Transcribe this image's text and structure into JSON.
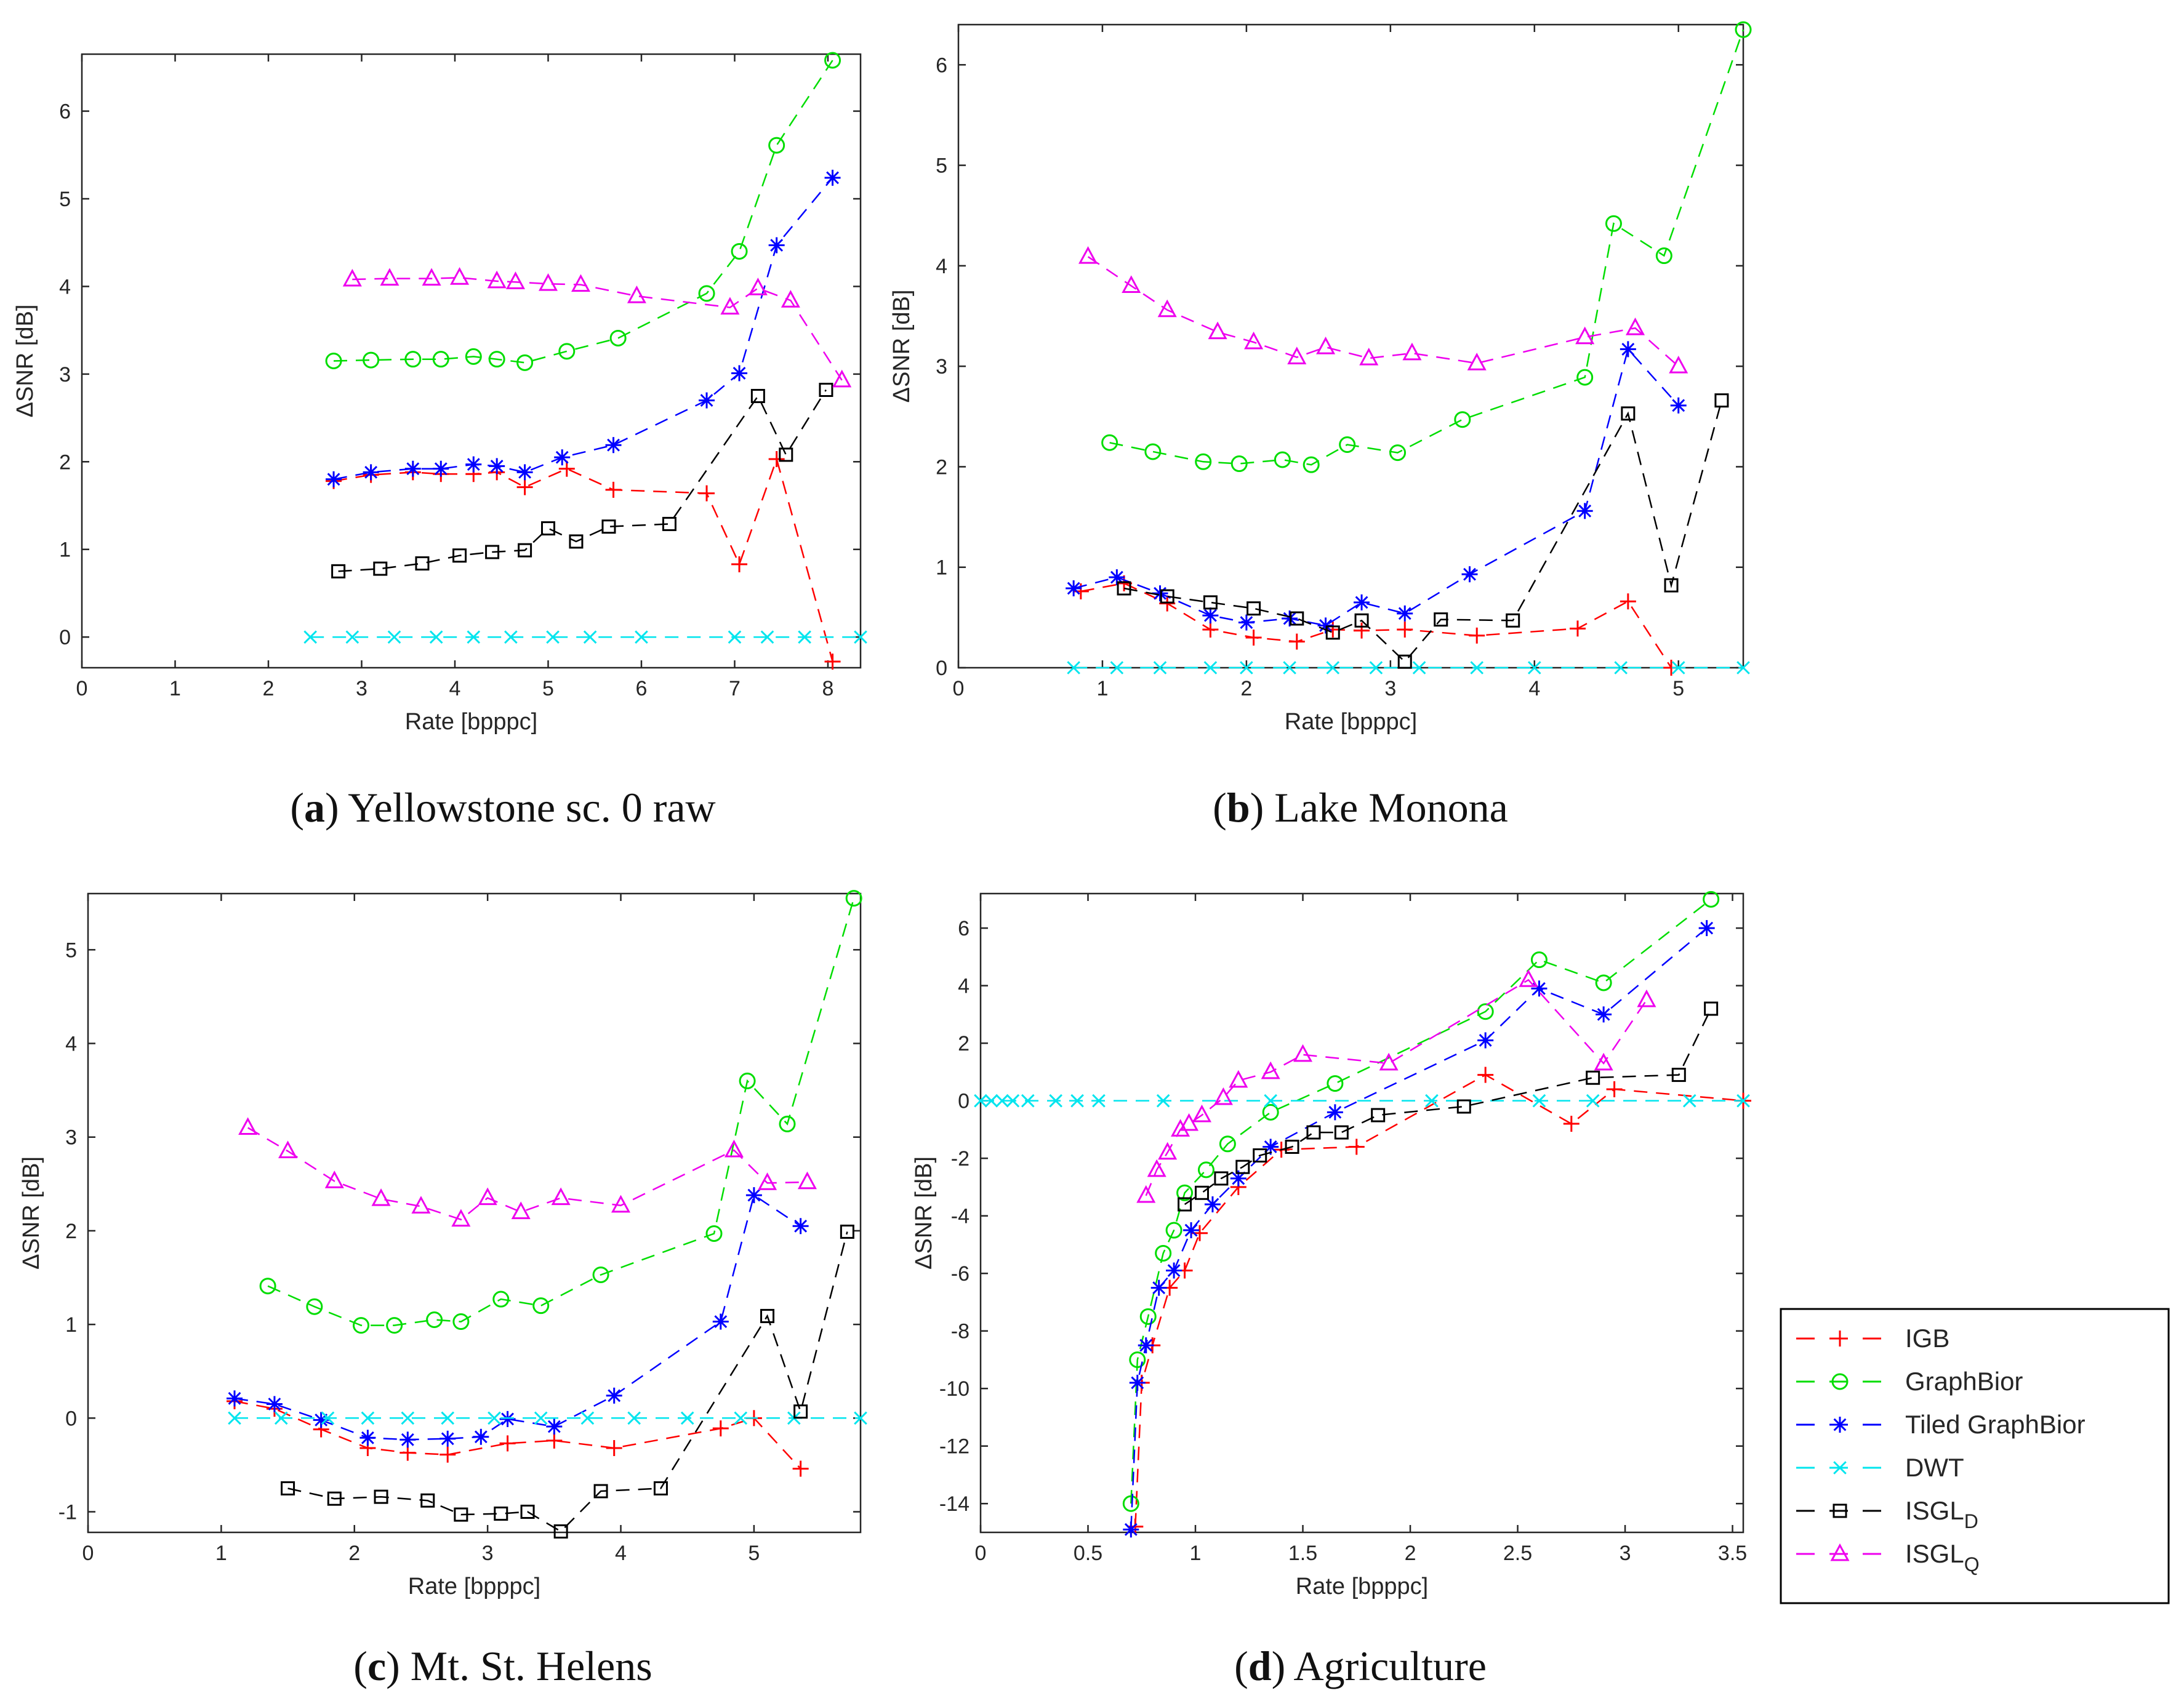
{
  "legend": {
    "entries": [
      {
        "name": "IGB",
        "sub": "",
        "color": "#ff0000",
        "marker": "plus"
      },
      {
        "name": "GraphBior",
        "sub": "",
        "color": "#00dd00",
        "marker": "circle"
      },
      {
        "name": "Tiled GraphBior",
        "sub": "",
        "color": "#0000ff",
        "marker": "star"
      },
      {
        "name": "DWT",
        "sub": "",
        "color": "#00e5ee",
        "marker": "cross"
      },
      {
        "name": "ISGL",
        "sub": "D",
        "color": "#000000",
        "marker": "square"
      },
      {
        "name": "ISGL",
        "sub": "Q",
        "color": "#ee00ee",
        "marker": "triangle"
      }
    ]
  },
  "chart_data": [
    {
      "type": "line",
      "caption_letter": "a",
      "caption_text": " Yellowstone sc. 0 raw",
      "xlabel": "Rate [bpppc]",
      "ylabel": "ΔSNR [dB]",
      "xlim": [
        0,
        8.35
      ],
      "ylim": [
        -0.35,
        6.65
      ],
      "xticks": [
        0,
        1,
        2,
        3,
        4,
        5,
        6,
        7,
        8
      ],
      "yticks": [
        0,
        1,
        2,
        3,
        4,
        5,
        6
      ],
      "series": [
        {
          "name": "IGB",
          "x": [
            2.7,
            3.1,
            3.55,
            3.85,
            4.2,
            4.45,
            4.75,
            5.2,
            5.7,
            6.7,
            7.05,
            7.45,
            8.05
          ],
          "y": [
            1.78,
            1.85,
            1.88,
            1.86,
            1.86,
            1.88,
            1.71,
            1.92,
            1.68,
            1.64,
            0.83,
            2.03,
            -0.28
          ]
        },
        {
          "name": "GraphBior",
          "x": [
            2.7,
            3.1,
            3.55,
            3.85,
            4.2,
            4.45,
            4.75,
            5.2,
            5.75,
            6.7,
            7.05,
            7.45,
            8.05
          ],
          "y": [
            3.15,
            3.16,
            3.17,
            3.17,
            3.2,
            3.17,
            3.13,
            3.26,
            3.41,
            3.92,
            4.4,
            5.61,
            6.58
          ]
        },
        {
          "name": "Tiled GraphBior",
          "x": [
            2.7,
            3.1,
            3.55,
            3.85,
            4.2,
            4.45,
            4.75,
            5.15,
            5.7,
            6.7,
            7.05,
            7.45,
            8.05
          ],
          "y": [
            1.8,
            1.88,
            1.92,
            1.92,
            1.97,
            1.95,
            1.88,
            2.05,
            2.19,
            2.7,
            3.01,
            4.47,
            5.24
          ]
        },
        {
          "name": "DWT",
          "x": [
            2.45,
            2.9,
            3.35,
            3.8,
            4.2,
            4.6,
            5.05,
            5.45,
            6.0,
            7.0,
            7.35,
            7.75,
            8.35
          ],
          "y": [
            0,
            0,
            0,
            0,
            0,
            0,
            0,
            0,
            0,
            0,
            0,
            0,
            0
          ]
        },
        {
          "name": "ISGL_D",
          "x": [
            2.75,
            3.2,
            3.65,
            4.05,
            4.4,
            4.75,
            5.0,
            5.3,
            5.65,
            6.3,
            7.25,
            7.55,
            7.98
          ],
          "y": [
            0.75,
            0.78,
            0.84,
            0.93,
            0.97,
            0.99,
            1.24,
            1.09,
            1.26,
            1.29,
            2.75,
            2.08,
            2.82
          ]
        },
        {
          "name": "ISGL_Q",
          "x": [
            2.9,
            3.3,
            3.75,
            4.05,
            4.45,
            4.65,
            5.0,
            5.35,
            5.95,
            6.95,
            7.25,
            7.6,
            8.15
          ],
          "y": [
            4.08,
            4.09,
            4.09,
            4.1,
            4.06,
            4.05,
            4.03,
            4.02,
            3.89,
            3.76,
            3.98,
            3.84,
            2.93
          ]
        }
      ]
    },
    {
      "type": "line",
      "caption_letter": "b",
      "caption_text": " Lake Monona",
      "xlabel": "Rate [bpppc]",
      "ylabel": "ΔSNR [dB]",
      "xlim": [
        0,
        5.45
      ],
      "ylim": [
        0,
        6.4
      ],
      "xticks": [
        0,
        1,
        2,
        3,
        4,
        5
      ],
      "yticks": [
        0,
        1,
        2,
        3,
        4,
        5,
        6
      ],
      "series": [
        {
          "name": "IGB",
          "x": [
            0.85,
            1.15,
            1.45,
            1.75,
            2.05,
            2.35,
            2.6,
            2.8,
            3.1,
            3.6,
            4.3,
            4.65,
            4.95
          ],
          "y": [
            0.76,
            0.84,
            0.64,
            0.38,
            0.3,
            0.26,
            0.38,
            0.37,
            0.38,
            0.32,
            0.39,
            0.66,
            0.0
          ]
        },
        {
          "name": "GraphBior",
          "x": [
            1.05,
            1.35,
            1.7,
            1.95,
            2.25,
            2.45,
            2.7,
            3.05,
            3.5,
            4.35,
            4.55,
            4.9,
            5.45
          ],
          "y": [
            2.24,
            2.15,
            2.05,
            2.03,
            2.07,
            2.02,
            2.22,
            2.14,
            2.47,
            2.89,
            4.42,
            4.1,
            6.35
          ]
        },
        {
          "name": "Tiled GraphBior",
          "x": [
            0.8,
            1.1,
            1.4,
            1.75,
            2.0,
            2.3,
            2.55,
            2.8,
            3.1,
            3.55,
            4.35,
            4.65,
            5.0
          ],
          "y": [
            0.79,
            0.9,
            0.74,
            0.52,
            0.45,
            0.49,
            0.42,
            0.65,
            0.54,
            0.93,
            1.56,
            3.17,
            2.61
          ]
        },
        {
          "name": "DWT",
          "x": [
            0.8,
            1.1,
            1.4,
            1.75,
            2.0,
            2.3,
            2.6,
            2.9,
            3.2,
            3.6,
            4.0,
            4.6,
            5.0,
            5.45
          ],
          "y": [
            0,
            0,
            0,
            0,
            0,
            0,
            0,
            0,
            0,
            0,
            0,
            0,
            0,
            0
          ]
        },
        {
          "name": "ISGL_D",
          "x": [
            1.15,
            1.45,
            1.75,
            2.05,
            2.35,
            2.6,
            2.8,
            3.1,
            3.35,
            3.85,
            4.65,
            4.95,
            5.3
          ],
          "y": [
            0.79,
            0.71,
            0.65,
            0.59,
            0.49,
            0.35,
            0.47,
            0.06,
            0.48,
            0.47,
            2.53,
            0.82,
            2.66
          ]
        },
        {
          "name": "ISGL_Q",
          "x": [
            0.9,
            1.2,
            1.45,
            1.8,
            2.05,
            2.35,
            2.55,
            2.85,
            3.15,
            3.6,
            4.35,
            4.7,
            5.0
          ],
          "y": [
            4.09,
            3.8,
            3.56,
            3.34,
            3.24,
            3.09,
            3.19,
            3.08,
            3.13,
            3.03,
            3.29,
            3.38,
            3.0
          ]
        }
      ]
    },
    {
      "type": "line",
      "caption_letter": "c",
      "caption_text": " Mt. St. Helens",
      "xlabel": "Rate [bpppc]",
      "ylabel": "ΔSNR [dB]",
      "xlim": [
        0,
        5.8
      ],
      "ylim": [
        -1.22,
        5.6
      ],
      "xticks": [
        0,
        1,
        2,
        3,
        4,
        5
      ],
      "yticks": [
        -1,
        0,
        1,
        2,
        3,
        4,
        5
      ],
      "series": [
        {
          "name": "IGB",
          "x": [
            1.1,
            1.4,
            1.75,
            2.1,
            2.4,
            2.7,
            3.15,
            3.5,
            3.95,
            4.75,
            5.0,
            5.35
          ],
          "y": [
            0.18,
            0.1,
            -0.12,
            -0.32,
            -0.37,
            -0.39,
            -0.27,
            -0.24,
            -0.32,
            -0.11,
            0.0,
            -0.54
          ]
        },
        {
          "name": "GraphBior",
          "x": [
            1.35,
            1.7,
            2.05,
            2.3,
            2.6,
            2.8,
            3.1,
            3.4,
            3.85,
            4.7,
            4.95,
            5.25,
            5.75
          ],
          "y": [
            1.41,
            1.19,
            0.99,
            0.99,
            1.05,
            1.03,
            1.27,
            1.2,
            1.53,
            1.97,
            3.6,
            3.14,
            5.55
          ]
        },
        {
          "name": "Tiled GraphBior",
          "x": [
            1.1,
            1.4,
            1.75,
            2.1,
            2.4,
            2.7,
            2.95,
            3.15,
            3.5,
            3.95,
            4.75,
            5.0,
            5.35
          ],
          "y": [
            0.21,
            0.15,
            -0.02,
            -0.21,
            -0.23,
            -0.22,
            -0.2,
            -0.01,
            -0.09,
            0.24,
            1.03,
            2.38,
            2.05
          ]
        },
        {
          "name": "DWT",
          "x": [
            1.1,
            1.45,
            1.8,
            2.1,
            2.4,
            2.7,
            3.05,
            3.4,
            3.75,
            4.1,
            4.5,
            4.9,
            5.3,
            5.8
          ],
          "y": [
            0,
            0,
            0,
            0,
            0,
            0,
            0,
            0,
            0,
            0,
            0,
            0,
            0,
            0
          ]
        },
        {
          "name": "ISGL_D",
          "x": [
            1.5,
            1.85,
            2.2,
            2.55,
            2.8,
            3.1,
            3.3,
            3.55,
            3.85,
            4.3,
            5.1,
            5.35,
            5.7
          ],
          "y": [
            -0.75,
            -0.86,
            -0.84,
            -0.88,
            -1.03,
            -1.02,
            -1.0,
            -1.21,
            -0.78,
            -0.75,
            1.09,
            0.07,
            1.99
          ]
        },
        {
          "name": "ISGL_Q",
          "x": [
            1.2,
            1.5,
            1.85,
            2.2,
            2.5,
            2.8,
            3.0,
            3.25,
            3.55,
            4.0,
            4.85,
            5.1,
            5.4
          ],
          "y": [
            3.1,
            2.85,
            2.53,
            2.34,
            2.26,
            2.12,
            2.35,
            2.2,
            2.35,
            2.27,
            2.86,
            2.51,
            2.52
          ]
        }
      ]
    },
    {
      "type": "line",
      "caption_letter": "d",
      "caption_text": " Agriculture",
      "xlabel": "Rate [bpppc]",
      "ylabel": "ΔSNR [dB]",
      "xlim": [
        0,
        3.55
      ],
      "ylim": [
        -15,
        7.2
      ],
      "xticks": [
        0,
        0.5,
        1,
        1.5,
        2,
        2.5,
        3,
        3.5
      ],
      "yticks": [
        -14,
        -12,
        -10,
        -8,
        -6,
        -4,
        -2,
        0,
        2,
        4,
        6
      ],
      "series": [
        {
          "name": "IGB",
          "x": [
            0.72,
            0.75,
            0.8,
            0.88,
            0.95,
            1.02,
            1.2,
            1.4,
            1.75,
            2.35,
            2.75,
            2.95,
            3.55
          ],
          "y": [
            -14.8,
            -9.8,
            -8.5,
            -6.5,
            -5.9,
            -4.6,
            -3.0,
            -1.7,
            -1.6,
            0.9,
            -0.8,
            0.4,
            0.0
          ]
        },
        {
          "name": "GraphBior",
          "x": [
            0.7,
            0.73,
            0.78,
            0.85,
            0.9,
            0.95,
            1.05,
            1.15,
            1.35,
            1.65,
            2.35,
            2.6,
            2.9,
            3.4
          ],
          "y": [
            -14.0,
            -9.0,
            -7.5,
            -5.3,
            -4.5,
            -3.2,
            -2.4,
            -1.5,
            -0.4,
            0.6,
            3.1,
            4.9,
            4.1,
            7.0
          ]
        },
        {
          "name": "Tiled GraphBior",
          "x": [
            0.7,
            0.73,
            0.77,
            0.83,
            0.9,
            0.98,
            1.08,
            1.2,
            1.35,
            1.65,
            2.35,
            2.6,
            2.9,
            3.38
          ],
          "y": [
            -14.9,
            -9.8,
            -8.5,
            -6.5,
            -5.9,
            -4.5,
            -3.6,
            -2.7,
            -1.6,
            -0.4,
            2.1,
            3.9,
            3.0,
            6.0
          ]
        },
        {
          "name": "DWT",
          "x": [
            0.0,
            0.05,
            0.1,
            0.15,
            0.22,
            0.35,
            0.45,
            0.55,
            0.85,
            1.35,
            2.1,
            2.6,
            2.85,
            3.3,
            3.55
          ],
          "y": [
            0,
            0,
            0,
            0,
            0,
            0,
            0,
            0,
            0,
            0,
            0,
            0,
            0,
            0,
            0
          ]
        },
        {
          "name": "ISGL_D",
          "x": [
            0.95,
            1.03,
            1.12,
            1.22,
            1.3,
            1.45,
            1.55,
            1.68,
            1.85,
            2.25,
            2.85,
            3.25,
            3.4
          ],
          "y": [
            -3.6,
            -3.2,
            -2.7,
            -2.3,
            -1.9,
            -1.6,
            -1.1,
            -1.1,
            -0.5,
            -0.2,
            0.8,
            0.9,
            3.2
          ]
        },
        {
          "name": "ISGL_Q",
          "x": [
            0.77,
            0.82,
            0.87,
            0.93,
            0.97,
            1.03,
            1.13,
            1.2,
            1.35,
            1.5,
            1.9,
            2.55,
            2.9,
            3.1
          ],
          "y": [
            -3.3,
            -2.4,
            -1.8,
            -1.0,
            -0.8,
            -0.5,
            0.1,
            0.7,
            1.0,
            1.6,
            1.3,
            4.2,
            1.3,
            3.5
          ]
        }
      ]
    }
  ]
}
